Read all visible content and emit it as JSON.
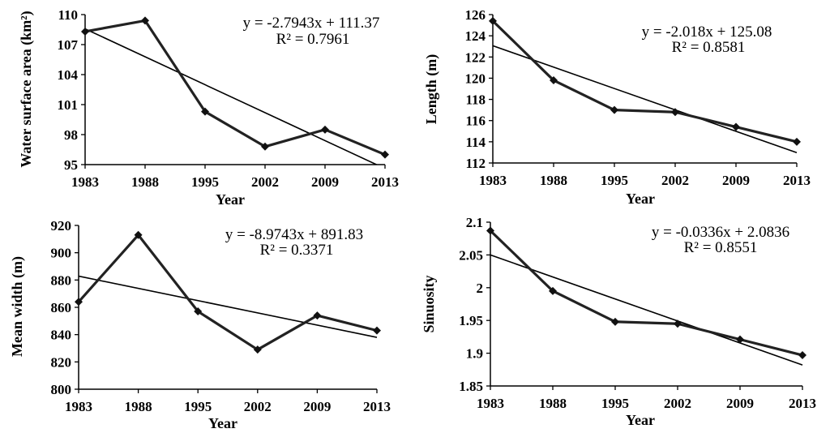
{
  "chart_data": [
    {
      "type": "line",
      "categories": [
        "1983",
        "1988",
        "1995",
        "2002",
        "2009",
        "2013"
      ],
      "values": [
        108.3,
        109.4,
        100.3,
        96.8,
        98.5,
        96.0
      ],
      "ylabel": "Water surface area (km²)",
      "xlabel": "Year",
      "ylim": [
        95,
        110
      ],
      "yticks": [
        "95",
        "98",
        "101",
        "104",
        "107",
        "110"
      ],
      "trendline": {
        "slope": -2.7943,
        "intercept": 111.37
      },
      "equation": "y = -2.7943x + 111.37",
      "r2": "R² = 0.7961",
      "legend": "top-right"
    },
    {
      "type": "line",
      "categories": [
        "1983",
        "1988",
        "1995",
        "2002",
        "2009",
        "2013"
      ],
      "values": [
        125.4,
        119.8,
        117.0,
        116.8,
        115.4,
        114.0
      ],
      "ylabel": "Length (m)",
      "xlabel": "Year",
      "ylim": [
        112,
        126
      ],
      "yticks": [
        "112",
        "114",
        "116",
        "118",
        "120",
        "122",
        "124",
        "126"
      ],
      "trendline": {
        "slope": -2.018,
        "intercept": 125.08
      },
      "equation": "y = -2.018x + 125.08",
      "r2": "R² = 0.8581",
      "legend": "top-right"
    },
    {
      "type": "line",
      "categories": [
        "1983",
        "1988",
        "1995",
        "2002",
        "2009",
        "2013"
      ],
      "values": [
        864,
        913,
        857,
        829,
        854,
        843
      ],
      "ylabel": "Mean width (m)",
      "xlabel": "Year",
      "ylim": [
        800,
        920
      ],
      "yticks": [
        "800",
        "820",
        "840",
        "860",
        "880",
        "900",
        "920"
      ],
      "trendline": {
        "slope": -8.9743,
        "intercept": 891.83
      },
      "equation": "y = -8.9743x + 891.83",
      "r2": "R² = 0.3371",
      "legend": "top-right"
    },
    {
      "type": "line",
      "categories": [
        "1983",
        "1988",
        "1995",
        "2002",
        "2009",
        "2013"
      ],
      "values": [
        2.087,
        1.995,
        1.948,
        1.945,
        1.921,
        1.897
      ],
      "ylabel": "Sinuosity",
      "xlabel": "Year",
      "ylim": [
        1.85,
        2.1
      ],
      "yticks": [
        "1.85",
        "1.9",
        "1.95",
        "2",
        "2.05",
        "2.1"
      ],
      "trendline": {
        "slope": -0.0336,
        "intercept": 2.0836
      },
      "equation": "y = -0.0336x + 2.0836",
      "r2": "R² = 0.8551",
      "legend": "top-right"
    }
  ]
}
